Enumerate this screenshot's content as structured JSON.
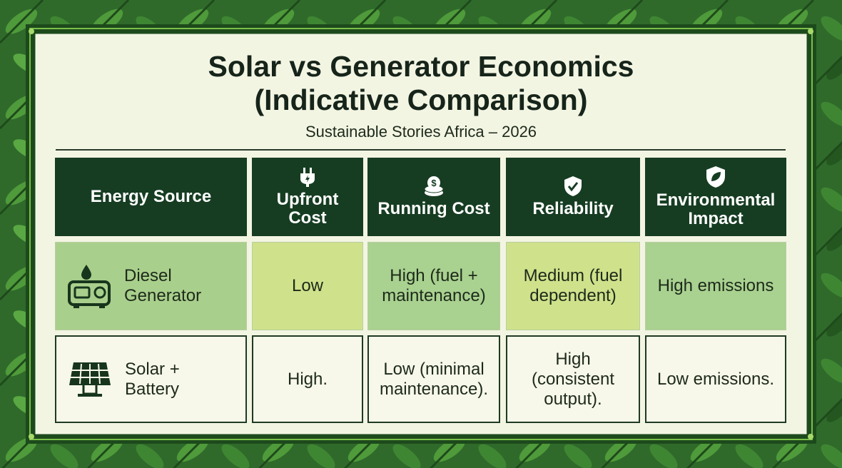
{
  "header": {
    "title_lines": [
      "Solar vs Generator Economics",
      "(Indicative Comparison)"
    ],
    "subtitle": "Sustainable Stories Africa – 2026"
  },
  "table": {
    "columns": [
      "Energy Source",
      "Upfront Cost",
      "Running Cost",
      "Reliability",
      "Environmental Impact"
    ],
    "rows": [
      [
        "Diesel Generator",
        "Low",
        "High (fuel + maintenance)",
        "Medium (fuel dependent)",
        "High emissions"
      ],
      [
        "Solar + Battery",
        "High.",
        "Low (minimal maintenance).",
        "High (consistent output).",
        "Low emissions."
      ]
    ]
  }
}
